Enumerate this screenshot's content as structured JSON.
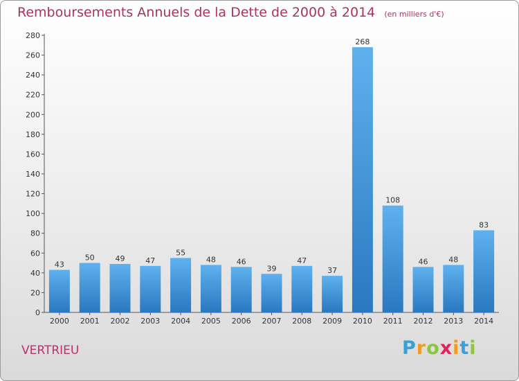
{
  "header": {
    "title": "Remboursements Annuels de la Dette de 2000 à 2014",
    "subtitle": "(en milliers d'€)"
  },
  "commune": "VERTRIEU",
  "logo": {
    "letters": [
      "P",
      "r",
      "o",
      "x",
      "i",
      "t",
      "i"
    ],
    "colors": [
      "#3aa0d8",
      "#f39a1e",
      "#8cc63f",
      "#e0245e",
      "#f39a1e",
      "#3aa0d8",
      "#8cc63f"
    ]
  },
  "chart_data": {
    "type": "bar",
    "title": "Remboursements Annuels de la Dette de 2000 à 2014",
    "subtitle": "(en milliers d'€)",
    "categories": [
      "2000",
      "2001",
      "2002",
      "2003",
      "2004",
      "2005",
      "2006",
      "2007",
      "2008",
      "2009",
      "2010",
      "2011",
      "2012",
      "2013",
      "2014"
    ],
    "values": [
      43,
      50,
      49,
      47,
      55,
      48,
      46,
      39,
      47,
      37,
      268,
      108,
      46,
      48,
      83
    ],
    "ylim": [
      0,
      280
    ],
    "yticks": [
      0,
      20,
      40,
      60,
      80,
      100,
      120,
      140,
      160,
      180,
      200,
      220,
      240,
      260,
      280
    ],
    "grid": false,
    "bar_color": "#3d8fd6",
    "xlabel": "",
    "ylabel": ""
  }
}
